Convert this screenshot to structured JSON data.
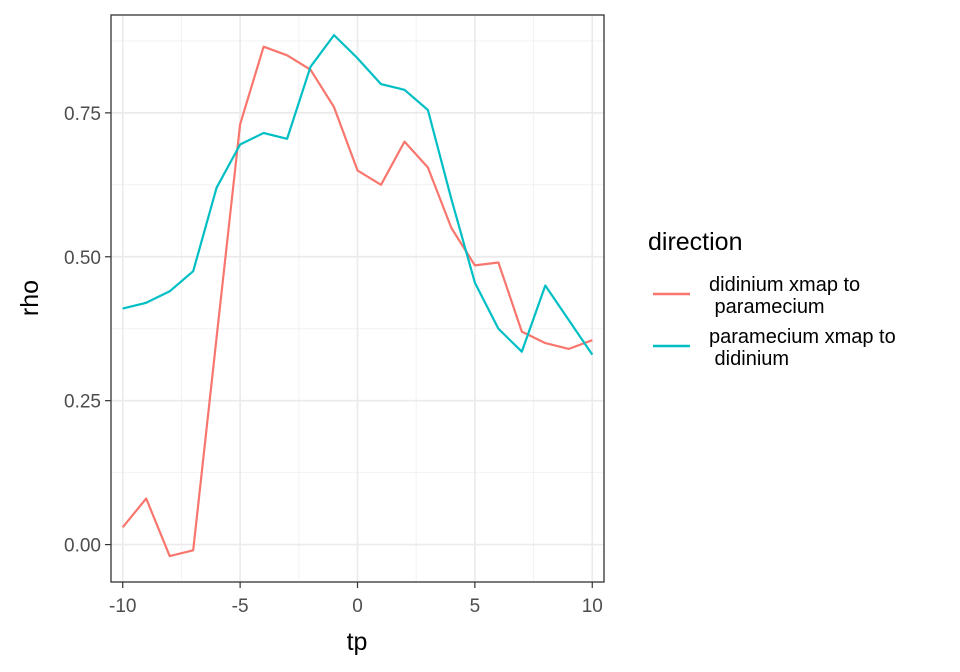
{
  "chart_data": {
    "type": "line",
    "xlabel": "tp",
    "ylabel": "rho",
    "xlim": [
      -10.5,
      10.5
    ],
    "ylim": [
      -0.065,
      0.92
    ],
    "x_ticks": [
      -10,
      -5,
      0,
      5,
      10
    ],
    "x_tick_labels": [
      "-10",
      "-5",
      "0",
      "5",
      "10"
    ],
    "y_ticks": [
      0.0,
      0.25,
      0.5,
      0.75
    ],
    "y_tick_labels": [
      "0.00",
      "0.25",
      "0.50",
      "0.75"
    ],
    "grid": true,
    "legend": {
      "title": "direction",
      "position": "right"
    },
    "x": [
      -10,
      -9,
      -8,
      -7,
      -6,
      -5,
      -4,
      -3,
      -2,
      -1,
      0,
      1,
      2,
      3,
      4,
      5,
      6,
      7,
      8,
      9,
      10
    ],
    "series": [
      {
        "name": "didinium xmap to\n paramecium",
        "color": "#F8766D",
        "values": [
          0.03,
          0.08,
          -0.02,
          -0.01,
          0.36,
          0.73,
          0.865,
          0.85,
          0.825,
          0.76,
          0.65,
          0.625,
          0.7,
          0.655,
          0.55,
          0.485,
          0.49,
          0.37,
          0.35,
          0.34,
          0.355
        ]
      },
      {
        "name": "paramecium xmap to\n didinium",
        "color": "#00BFC4",
        "values": [
          0.41,
          0.42,
          0.44,
          0.475,
          0.62,
          0.695,
          0.715,
          0.705,
          0.83,
          0.885,
          0.845,
          0.8,
          0.79,
          0.755,
          0.6,
          0.455,
          0.375,
          0.335,
          0.45,
          0.39,
          0.33
        ]
      }
    ]
  }
}
